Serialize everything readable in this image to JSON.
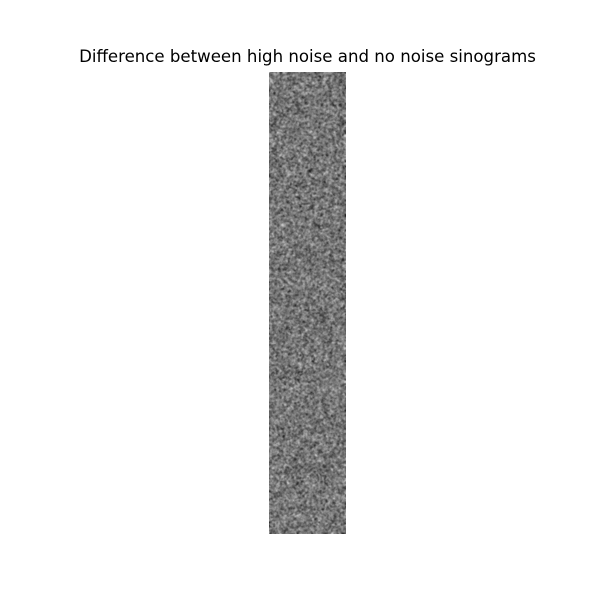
{
  "chart_data": {
    "type": "heatmap",
    "title": "Difference between high noise and no noise sinograms",
    "colormap": "gray",
    "axes": "off",
    "content": "random noise field",
    "background_color": "#ffffff"
  }
}
